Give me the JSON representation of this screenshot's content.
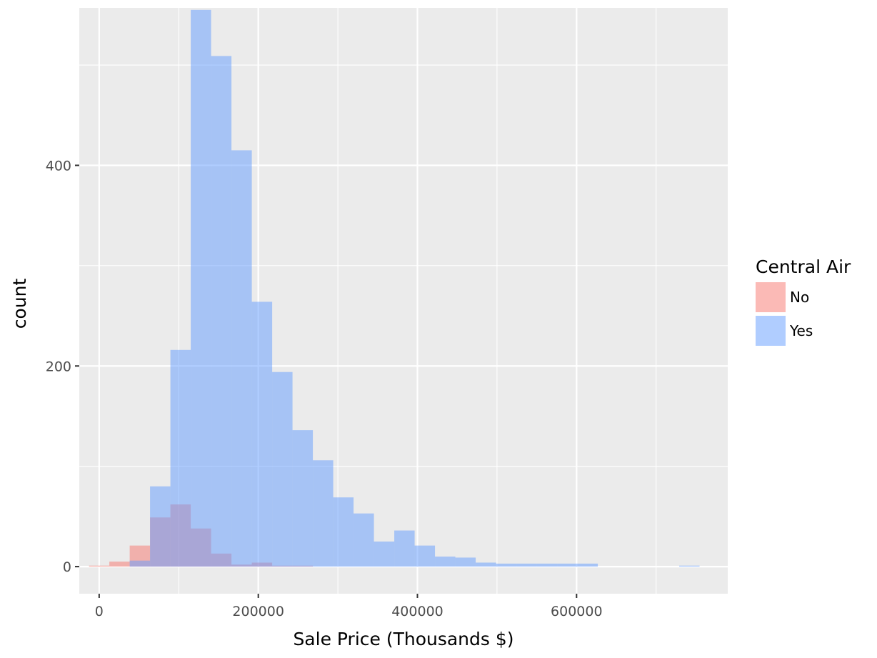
{
  "chart_data": {
    "type": "bar",
    "subtype": "histogram",
    "title": "",
    "xlabel": "Sale Price (Thousands $)",
    "ylabel": "count",
    "xlim": [
      -25000,
      790000
    ],
    "ylim": [
      -27,
      557
    ],
    "x_ticks": [
      0,
      200000,
      400000,
      600000
    ],
    "x_tick_labels": [
      "0",
      "200000",
      "400000",
      "600000"
    ],
    "y_ticks": [
      0,
      200,
      400
    ],
    "y_tick_labels": [
      "0",
      "200",
      "400"
    ],
    "grid": true,
    "legend": {
      "title": "Central Air",
      "position": "right"
    },
    "bin_edges": [
      -12789,
      12789,
      38368,
      63947,
      89526,
      115105,
      140684,
      166263,
      191842,
      217421,
      243000,
      268579,
      294158,
      319737,
      345316,
      370895,
      396474,
      422053,
      447632,
      473211,
      498790,
      524369,
      549948,
      575527,
      601106,
      626685,
      652264,
      677843,
      703422,
      729001,
      754580
    ],
    "series": [
      {
        "name": "No",
        "color": "#F8766D",
        "values": [
          1,
          5,
          21,
          49,
          62,
          38,
          13,
          2,
          4,
          1,
          1,
          0,
          0,
          0,
          0,
          0,
          0,
          0,
          0,
          0,
          0,
          0,
          0,
          0,
          0,
          0,
          0,
          0,
          0,
          0
        ]
      },
      {
        "name": "Yes",
        "color": "#619CFF",
        "values": [
          0,
          0,
          6,
          80,
          216,
          555,
          509,
          415,
          264,
          194,
          136,
          106,
          69,
          53,
          25,
          36,
          21,
          10,
          9,
          4,
          3,
          3,
          3,
          3,
          3,
          0,
          0,
          0,
          0,
          1
        ]
      }
    ]
  }
}
